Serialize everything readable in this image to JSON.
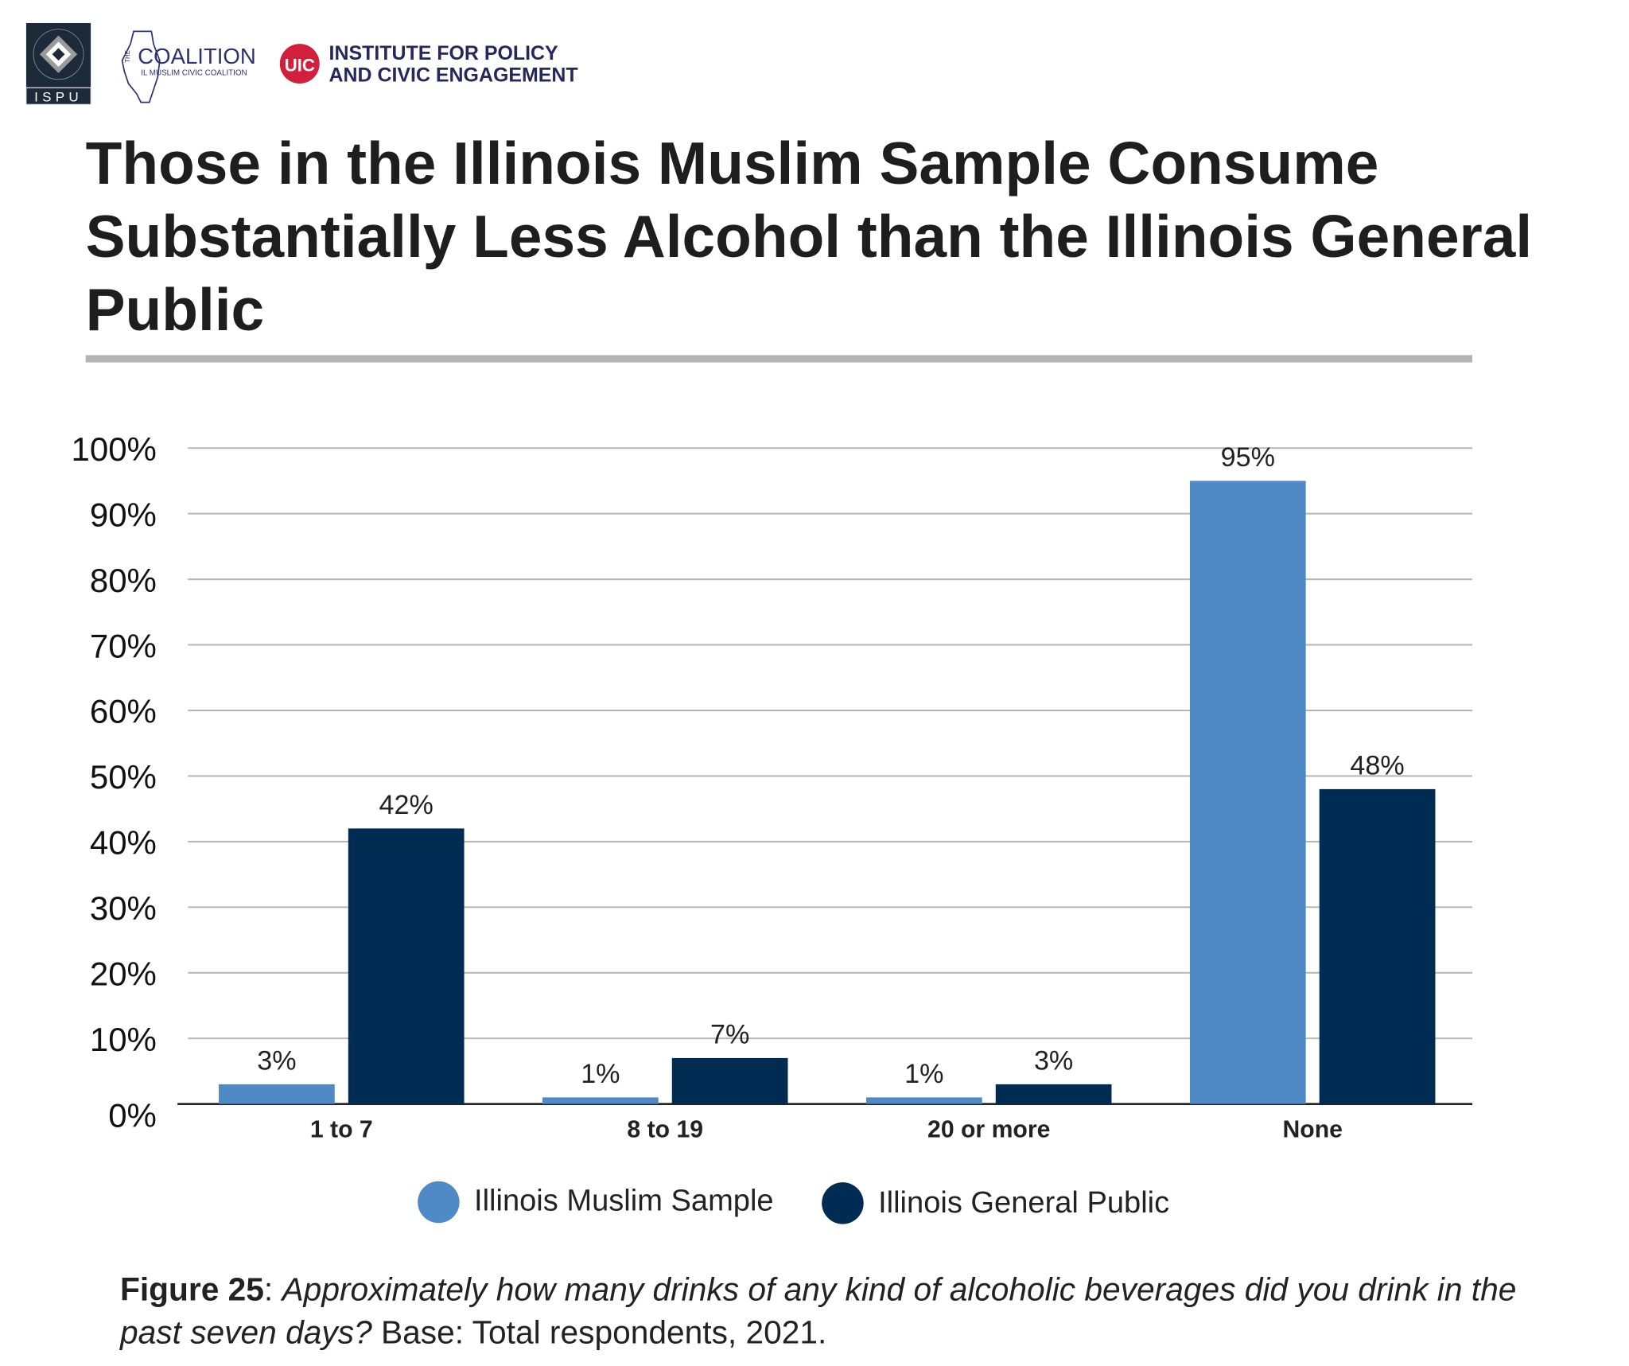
{
  "logos": {
    "ispu": {
      "text": "ISPU",
      "ring_text": "INSTITUTE FOR SOCIAL POLICY AND UNDERSTANDING"
    },
    "coalition": {
      "prefix": "THE",
      "name": "COALITION",
      "subtitle": "IL MUSLIM CIVIC COALITION"
    },
    "uic": {
      "badge": "UIC",
      "line1": "INSTITUTE FOR POLICY",
      "line2": "AND CIVIC ENGAGEMENT",
      "badge_color": "#d21f3c",
      "text_color": "#24285b"
    }
  },
  "caption": {
    "label": "Figure 25",
    "separator": ": ",
    "question": "Approximately how many drinks of any kind of alcoholic beverages did you drink in the past seven days?",
    "base": " Base: Total respondents, 2021."
  },
  "chart_data": {
    "type": "bar",
    "title": "Those in the Illinois Muslim Sample Consume Substantially Less Alcohol than the Illinois General Public",
    "categories": [
      "1 to 7",
      "8 to 19",
      "20 or more",
      "None"
    ],
    "series": [
      {
        "name": "Illinois Muslim Sample",
        "values": [
          3,
          1,
          1,
          95
        ],
        "labels": [
          "3%",
          "1%",
          "1%",
          "95%"
        ],
        "color": "#4f89c6"
      },
      {
        "name": "Illinois General Public",
        "values": [
          42,
          7,
          3,
          48
        ],
        "labels": [
          "42%",
          "7%",
          "3%",
          "48%"
        ],
        "color": "#002b53"
      }
    ],
    "ylim": [
      0,
      100
    ],
    "yticks": [
      "0%",
      "10%",
      "20%",
      "30%",
      "40%",
      "50%",
      "60%",
      "70%",
      "80%",
      "90%",
      "100%"
    ],
    "grid": true,
    "legend": "bottom",
    "xlabel": "",
    "ylabel": ""
  }
}
